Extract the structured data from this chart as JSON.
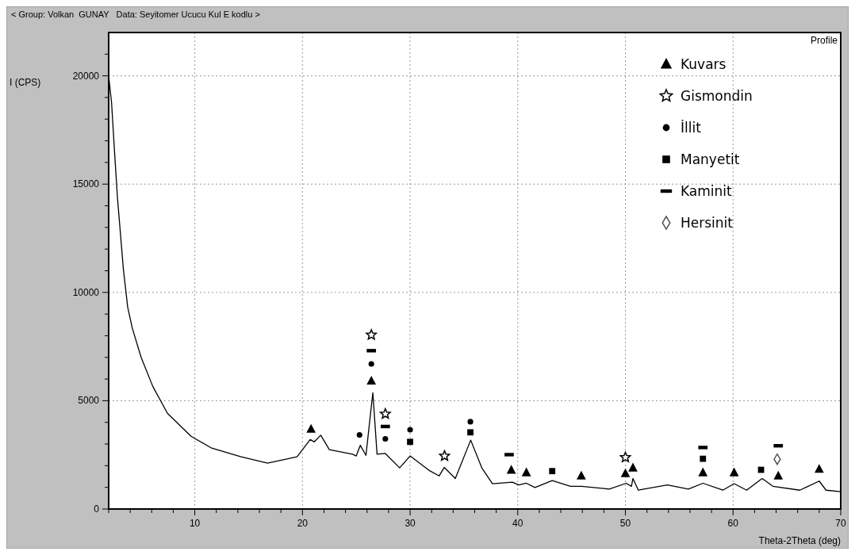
{
  "chart_data": {
    "type": "line",
    "title": "< Group: Volkan  GUNAY   Data: Seyitomer Ucucu Kul E kodlu >",
    "xlabel": "Theta-2Theta (deg)",
    "ylabel": "I (CPS)",
    "annotations": [
      "Profile"
    ],
    "xlim": [
      2,
      70
    ],
    "ylim": [
      0,
      22000
    ],
    "xticks": [
      {
        "value": 2,
        "label": null
      },
      {
        "value": 4,
        "label": null
      },
      {
        "value": 6,
        "label": null
      },
      {
        "value": 8,
        "label": null
      },
      10,
      {
        "value": 12,
        "label": null
      },
      {
        "value": 14,
        "label": null
      },
      {
        "value": 16,
        "label": null
      },
      {
        "value": 18,
        "label": null
      },
      20,
      {
        "value": 22,
        "label": null
      },
      {
        "value": 24,
        "label": null
      },
      {
        "value": 26,
        "label": null
      },
      {
        "value": 28,
        "label": null
      },
      30,
      {
        "value": 32,
        "label": null
      },
      {
        "value": 34,
        "label": null
      },
      {
        "value": 36,
        "label": null
      },
      {
        "value": 38,
        "label": null
      },
      40,
      {
        "value": 42,
        "label": null
      },
      {
        "value": 44,
        "label": null
      },
      {
        "value": 46,
        "label": null
      },
      {
        "value": 48,
        "label": null
      },
      50,
      {
        "value": 52,
        "label": null
      },
      {
        "value": 54,
        "label": null
      },
      {
        "value": 56,
        "label": null
      },
      {
        "value": 58,
        "label": null
      },
      60,
      {
        "value": 62,
        "label": null
      },
      {
        "value": 64,
        "label": null
      },
      {
        "value": 66,
        "label": null
      },
      {
        "value": 68,
        "label": null
      },
      70
    ],
    "yticks": [
      0,
      {
        "value": 1000,
        "label": null
      },
      {
        "value": 2000,
        "label": null
      },
      {
        "value": 3000,
        "label": null
      },
      {
        "value": 4000,
        "label": null
      },
      5000,
      {
        "value": 6000,
        "label": null
      },
      {
        "value": 7000,
        "label": null
      },
      {
        "value": 8000,
        "label": null
      },
      {
        "value": 9000,
        "label": null
      },
      10000,
      {
        "value": 11000,
        "label": null
      },
      {
        "value": 12000,
        "label": null
      },
      {
        "value": 13000,
        "label": null
      },
      {
        "value": 14000,
        "label": null
      },
      15000,
      {
        "value": 16000,
        "label": null
      },
      {
        "value": 17000,
        "label": null
      },
      {
        "value": 18000,
        "label": null
      },
      {
        "value": 19000,
        "label": null
      },
      20000,
      {
        "value": 21000,
        "label": null
      }
    ],
    "grid": true,
    "legend": "top right",
    "series": [
      {
        "color": "#000000",
        "marker": "none",
        "x": [
          2,
          2.27,
          2.55,
          2.81,
          3.37,
          3.77,
          4.19,
          5.01,
          6.1,
          7.46,
          9.65,
          11.57,
          14.3,
          16.76,
          19.5,
          20.72,
          21.1,
          21.7,
          22.5,
          24.65,
          25.0,
          25.37,
          25.9,
          26.54,
          26.93,
          27.68,
          29.03,
          30.0,
          31.74,
          32.7,
          33.17,
          34.2,
          35.63,
          36.66,
          37.65,
          39.5,
          40.1,
          40.8,
          41.6,
          43.2,
          44.9,
          45.9,
          48.5,
          50.07,
          50.56,
          50.7,
          51.2,
          53.9,
          55.85,
          57.2,
          59.05,
          60.1,
          61.26,
          62.7,
          63.7,
          66.2,
          68.0,
          68.64,
          70
        ],
        "values": [
          20000,
          18760,
          16460,
          14420,
          11060,
          9310,
          8360,
          7010,
          5660,
          4420,
          3360,
          2810,
          2410,
          2120,
          2410,
          3210,
          3100,
          3410,
          2740,
          2530,
          2450,
          2940,
          2480,
          5370,
          2530,
          2570,
          1900,
          2450,
          1790,
          1530,
          1920,
          1410,
          3180,
          1900,
          1170,
          1240,
          1110,
          1190,
          990,
          1310,
          1050,
          1050,
          920,
          1190,
          1050,
          1410,
          870,
          1110,
          920,
          1190,
          870,
          1170,
          870,
          1410,
          1050,
          870,
          1290,
          870,
          800
        ]
      },
      {
        "type": "scatter",
        "name": "Kuvars",
        "color": "#000000",
        "marker": "triangle",
        "x": [
          20.8,
          26.4,
          39.4,
          40.8,
          45.9,
          50.0,
          50.7,
          57.2,
          60.1,
          64.2,
          68.0
        ],
        "values": [
          3690,
          5910,
          1800,
          1680,
          1530,
          1640,
          1900,
          1680,
          1680,
          1530,
          1840
        ]
      },
      {
        "type": "scatter",
        "name": "Gismondin",
        "color": "#000000",
        "marker": "star",
        "x": [
          26.4,
          27.7,
          33.2,
          50.0
        ],
        "values": [
          8040,
          4390,
          2450,
          2380
        ]
      },
      {
        "type": "scatter",
        "name": "İllit",
        "color": "#000000",
        "marker": "circle",
        "x": [
          25.3,
          26.4,
          27.7,
          30.0,
          35.6
        ],
        "values": [
          3420,
          6700,
          3240,
          3660,
          4030
        ]
      },
      {
        "type": "scatter",
        "name": "Manyetit",
        "color": "#000000",
        "marker": "square",
        "x": [
          30.0,
          35.6,
          43.2,
          57.2,
          62.6
        ],
        "values": [
          3100,
          3540,
          1750,
          2320,
          1810
        ]
      },
      {
        "type": "scatter",
        "name": "Kaminit",
        "color": "#000000",
        "x": [
          26.4,
          27.7,
          39.2,
          57.2,
          64.2
        ],
        "values": [
          7310,
          3810,
          2510,
          2840,
          2920
        ]
      },
      {
        "type": "scatter",
        "name": "Hersinit",
        "color": "#555555",
        "marker": "diamond",
        "x": [
          64.1
        ],
        "values": [
          2300
        ]
      }
    ]
  }
}
